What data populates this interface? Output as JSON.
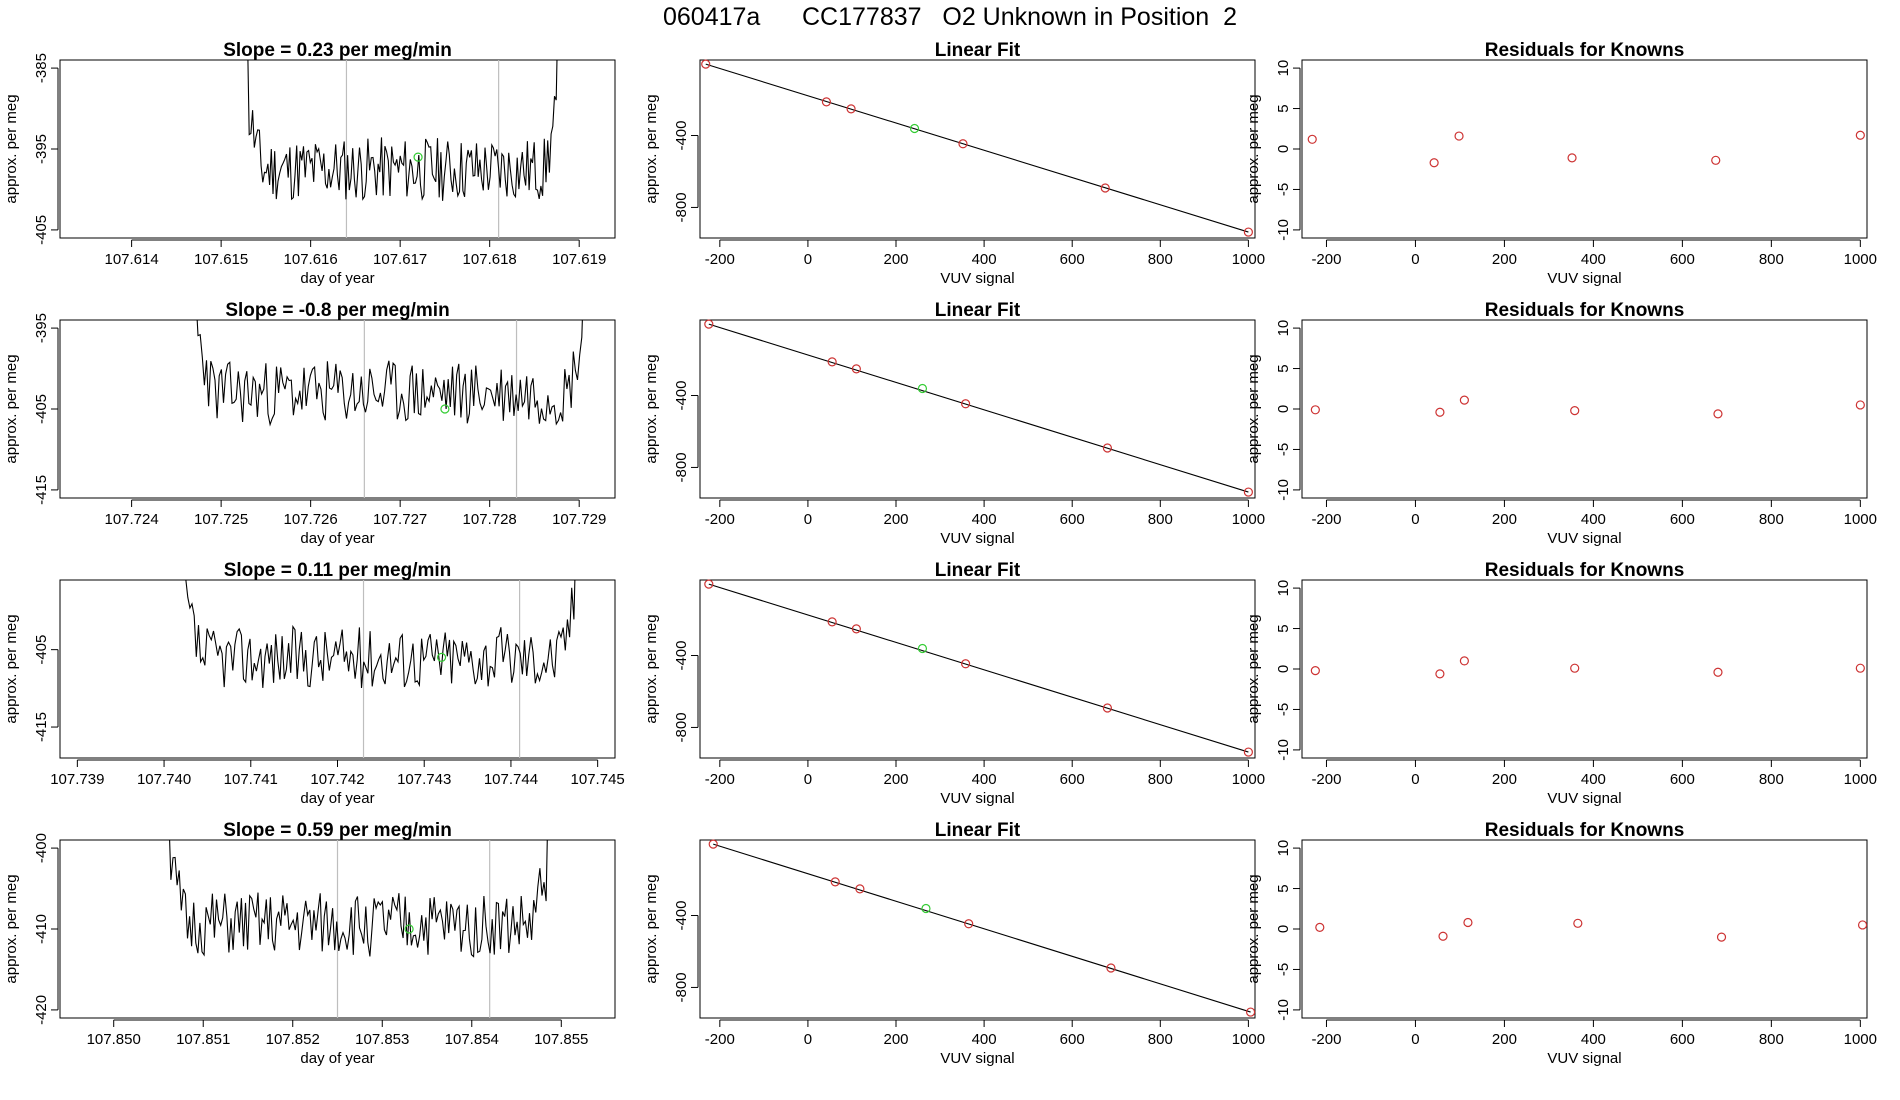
{
  "title": "060417a      CC177837   O2 Unknown in Position  2",
  "colors": {
    "line": "#000000",
    "known_point": "#cd3333",
    "unknown_point": "#33cc33",
    "vline": "#bebebe"
  },
  "fit_title": "Linear Fit",
  "resid_title": "Residuals for Knowns",
  "xlabel_time": "day of year",
  "xlabel_vuv": "VUV signal",
  "ylabel": "approx. per meg",
  "chart_data": [
    {
      "type": "line",
      "row": 0,
      "slope_title": "Slope =  0.23  per meg/min",
      "time": {
        "xlim": [
          107.6132,
          107.6194
        ],
        "ylim": [
          -406,
          -384
        ],
        "xticks": [
          "107.614",
          "107.615",
          "107.616",
          "107.617",
          "107.618",
          "107.619"
        ],
        "yticks": [
          "-385",
          "-395",
          "-405"
        ],
        "start": 107.6152,
        "end": 107.6188,
        "base": -397.5,
        "vlines": [
          107.6164,
          107.6181
        ],
        "unknown_point": [
          107.6172,
          -396
        ],
        "seed": 11
      },
      "fit": {
        "xlim": [
          -245,
          1015
        ],
        "ylim": [
          -970,
          20
        ],
        "xticks": [
          "-200",
          "0",
          "200",
          "400",
          "600",
          "800",
          "1000"
        ],
        "yticks": [
          "-400",
          "-800"
        ],
        "known_x": [
          -232,
          42,
          98,
          352,
          675,
          1000
        ],
        "known_y": [
          -3,
          -213,
          -252,
          -446,
          -692,
          -937
        ],
        "unknown": [
          242,
          -361
        ],
        "line": [
          [
            -232,
            -3
          ],
          [
            1000,
            -937
          ]
        ]
      },
      "resid": {
        "xlim": [
          -255,
          1015
        ],
        "ylim": [
          -11,
          11
        ],
        "xticks": [
          "-200",
          "0",
          "200",
          "400",
          "600",
          "800",
          "1000"
        ],
        "yticks": [
          "10",
          "5",
          "0",
          "-5",
          "-10"
        ],
        "x": [
          -232,
          42,
          98,
          352,
          675,
          1000
        ],
        "y": [
          1.2,
          -1.7,
          1.6,
          -1.1,
          -1.4,
          1.7
        ]
      }
    },
    {
      "type": "line",
      "row": 1,
      "slope_title": "Slope =  -0.8  per meg/min",
      "time": {
        "xlim": [
          107.7232,
          107.7294
        ],
        "ylim": [
          -416,
          -394
        ],
        "xticks": [
          "107.724",
          "107.725",
          "107.726",
          "107.727",
          "107.728",
          "107.729"
        ],
        "yticks": [
          "-395",
          "-405",
          "-415"
        ],
        "start": 107.7246,
        "end": 107.7291,
        "base": -403,
        "vlines": [
          107.7266,
          107.7283
        ],
        "unknown_point": [
          107.7275,
          -405
        ],
        "seed": 23
      },
      "fit": {
        "xlim": [
          -245,
          1015
        ],
        "ylim": [
          -970,
          20
        ],
        "xticks": [
          "-200",
          "0",
          "200",
          "400",
          "600",
          "800",
          "1000"
        ],
        "yticks": [
          "-400",
          "-800"
        ],
        "known_x": [
          -225,
          55,
          110,
          358,
          680,
          1000
        ],
        "known_y": [
          -3,
          -213,
          -252,
          -446,
          -692,
          -937
        ],
        "unknown": [
          260,
          -361
        ],
        "line": [
          [
            -225,
            -3
          ],
          [
            1000,
            -937
          ]
        ]
      },
      "resid": {
        "xlim": [
          -255,
          1015
        ],
        "ylim": [
          -11,
          11
        ],
        "xticks": [
          "-200",
          "0",
          "200",
          "400",
          "600",
          "800",
          "1000"
        ],
        "yticks": [
          "10",
          "5",
          "0",
          "-5",
          "-10"
        ],
        "x": [
          -225,
          55,
          110,
          358,
          680,
          1000
        ],
        "y": [
          -0.1,
          -0.4,
          1.1,
          -0.2,
          -0.6,
          0.5
        ]
      }
    },
    {
      "type": "line",
      "row": 2,
      "slope_title": "Slope =  0.11  per meg/min",
      "time": {
        "xlim": [
          107.7388,
          107.7452
        ],
        "ylim": [
          -419,
          -396
        ],
        "xticks": [
          "107.739",
          "107.740",
          "107.741",
          "107.742",
          "107.743",
          "107.744",
          "107.745"
        ],
        "yticks": [
          "-405",
          "-415"
        ],
        "start": 107.7401,
        "end": 107.7448,
        "base": -406,
        "vlines": [
          107.7423,
          107.7441
        ],
        "unknown_point": [
          107.7432,
          -406
        ],
        "seed": 37
      },
      "fit": {
        "xlim": [
          -245,
          1015
        ],
        "ylim": [
          -970,
          20
        ],
        "xticks": [
          "-200",
          "0",
          "200",
          "400",
          "600",
          "800",
          "1000"
        ],
        "yticks": [
          "-400",
          "-800"
        ],
        "known_x": [
          -225,
          55,
          110,
          358,
          680,
          1000
        ],
        "known_y": [
          -3,
          -213,
          -252,
          -446,
          -692,
          -937
        ],
        "unknown": [
          260,
          -361
        ],
        "line": [
          [
            -225,
            -3
          ],
          [
            1000,
            -937
          ]
        ]
      },
      "resid": {
        "xlim": [
          -255,
          1015
        ],
        "ylim": [
          -11,
          11
        ],
        "xticks": [
          "-200",
          "0",
          "200",
          "400",
          "600",
          "800",
          "1000"
        ],
        "yticks": [
          "10",
          "5",
          "0",
          "-5",
          "-10"
        ],
        "x": [
          -225,
          55,
          110,
          358,
          680,
          1000
        ],
        "y": [
          -0.2,
          -0.6,
          1.0,
          0.1,
          -0.4,
          0.1
        ]
      }
    },
    {
      "type": "line",
      "row": 3,
      "slope_title": "Slope =  0.59  per meg/min",
      "time": {
        "xlim": [
          107.8494,
          107.8556
        ],
        "ylim": [
          -421,
          -399
        ],
        "xticks": [
          "107.850",
          "107.851",
          "107.852",
          "107.853",
          "107.854",
          "107.855"
        ],
        "yticks": [
          "-400",
          "-410",
          "-420"
        ],
        "start": 107.8505,
        "end": 107.8549,
        "base": -409.5,
        "vlines": [
          107.8525,
          107.8542
        ],
        "unknown_point": [
          107.8533,
          -410
        ],
        "seed": 51
      },
      "fit": {
        "xlim": [
          -245,
          1015
        ],
        "ylim": [
          -970,
          20
        ],
        "xticks": [
          "-200",
          "0",
          "200",
          "400",
          "600",
          "800",
          "1000"
        ],
        "yticks": [
          "-400",
          "-800"
        ],
        "known_x": [
          -215,
          62,
          118,
          365,
          688,
          1005
        ],
        "known_y": [
          -3,
          -213,
          -252,
          -446,
          -692,
          -937
        ],
        "unknown": [
          268,
          -361
        ],
        "line": [
          [
            -215,
            -3
          ],
          [
            1005,
            -937
          ]
        ]
      },
      "resid": {
        "xlim": [
          -255,
          1015
        ],
        "ylim": [
          -11,
          11
        ],
        "xticks": [
          "-200",
          "0",
          "200",
          "400",
          "600",
          "800",
          "1000"
        ],
        "yticks": [
          "10",
          "5",
          "0",
          "-5",
          "-10"
        ],
        "x": [
          -215,
          62,
          118,
          365,
          688,
          1005
        ],
        "y": [
          0.2,
          -0.9,
          0.8,
          0.7,
          -1.0,
          0.5
        ]
      }
    }
  ]
}
